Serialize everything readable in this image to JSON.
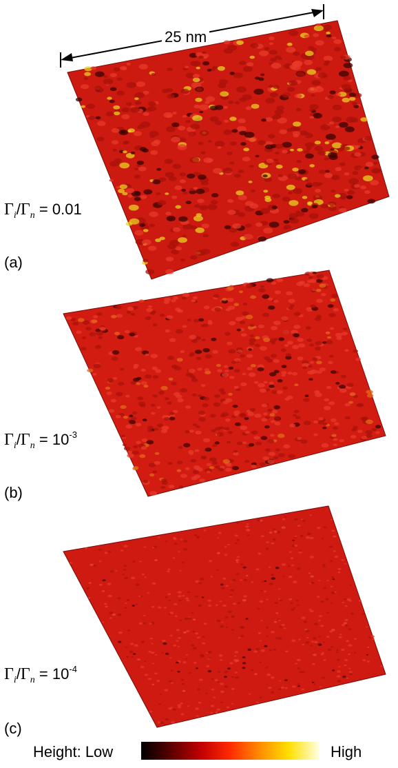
{
  "scale_label": "25 nm",
  "panels": [
    {
      "letter": "(a)",
      "ratio_value": "0.01",
      "ratio_exp": "",
      "surface_fill": "#cc1a10",
      "peak_color": "#e8d020",
      "roughness": 1.0
    },
    {
      "letter": "(b)",
      "ratio_value": "10",
      "ratio_exp": "-3",
      "surface_fill": "#d21c12",
      "peak_color": "#e06a18",
      "roughness": 0.55
    },
    {
      "letter": "(c)",
      "ratio_value": "10",
      "ratio_exp": "-4",
      "surface_fill": "#cf1a12",
      "peak_color": "#e84a3c",
      "roughness": 0.15
    }
  ],
  "ratio_symbols": {
    "gamma": "Γ",
    "sub_i": "i",
    "sub_n": "n",
    "slash": "/",
    "equals": "="
  },
  "legend": {
    "prefix": "Height: Low",
    "suffix": "High",
    "stops": [
      "#000000",
      "#5a0000",
      "#c00000",
      "#ff2a00",
      "#ff8c00",
      "#ffe000",
      "#ffffe0"
    ]
  }
}
